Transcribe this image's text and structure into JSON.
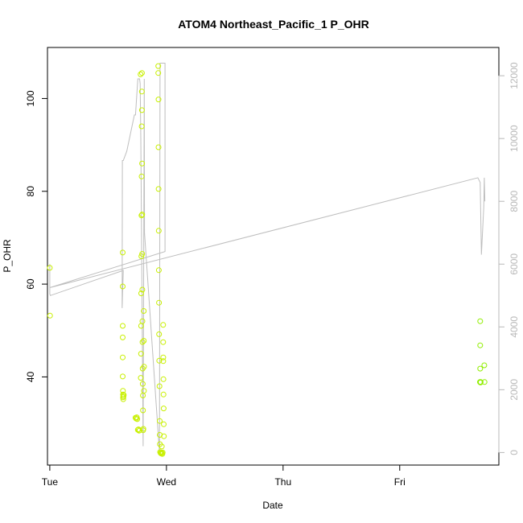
{
  "chart_data": {
    "type": "scatter",
    "title": "ATOM4 Northeast_Pacific_1 P_OHR",
    "xlabel": "Date",
    "ylabel": "P_OHR",
    "x_range": [
      -0.02,
      3.85
    ],
    "y_range": [
      21,
      111
    ],
    "y2_range": [
      -400,
      12900
    ],
    "x_ticks": [
      {
        "value": 0,
        "label": "Tue"
      },
      {
        "value": 1,
        "label": "Wed"
      },
      {
        "value": 2,
        "label": "Thu"
      },
      {
        "value": 3,
        "label": "Fri"
      }
    ],
    "y_ticks": [
      40,
      60,
      80,
      100
    ],
    "y2_ticks": [
      0,
      2000,
      4000,
      6000,
      8000,
      10000,
      12000
    ],
    "grid": false,
    "colors": {
      "points": "#c8f000",
      "points_late": "#90ee00",
      "line": "#bebebe",
      "right_axis": "#b8b8b8"
    },
    "points": [
      {
        "x": 0.0,
        "y": 63.5
      },
      {
        "x": 0.002,
        "y": 53.2
      },
      {
        "x": 0.625,
        "y": 66.8
      },
      {
        "x": 0.625,
        "y": 59.5
      },
      {
        "x": 0.625,
        "y": 51.0
      },
      {
        "x": 0.625,
        "y": 48.5
      },
      {
        "x": 0.625,
        "y": 44.2
      },
      {
        "x": 0.625,
        "y": 40.1
      },
      {
        "x": 0.627,
        "y": 37.0
      },
      {
        "x": 0.628,
        "y": 36.2
      },
      {
        "x": 0.628,
        "y": 35.6
      },
      {
        "x": 0.63,
        "y": 35.2
      },
      {
        "x": 0.632,
        "y": 35.8
      },
      {
        "x": 0.634,
        "y": 36.1
      },
      {
        "x": 0.735,
        "y": 31.2
      },
      {
        "x": 0.74,
        "y": 31.0
      },
      {
        "x": 0.745,
        "y": 31.3
      },
      {
        "x": 0.75,
        "y": 30.9
      },
      {
        "x": 0.755,
        "y": 28.6
      },
      {
        "x": 0.76,
        "y": 28.7
      },
      {
        "x": 0.765,
        "y": 28.4
      },
      {
        "x": 0.77,
        "y": 28.5
      },
      {
        "x": 0.778,
        "y": 105.2
      },
      {
        "x": 0.78,
        "y": 39.8
      },
      {
        "x": 0.782,
        "y": 45.0
      },
      {
        "x": 0.783,
        "y": 51.0
      },
      {
        "x": 0.784,
        "y": 58.0
      },
      {
        "x": 0.785,
        "y": 66.0
      },
      {
        "x": 0.786,
        "y": 74.8
      },
      {
        "x": 0.787,
        "y": 83.2
      },
      {
        "x": 0.788,
        "y": 94.0
      },
      {
        "x": 0.789,
        "y": 101.5
      },
      {
        "x": 0.79,
        "y": 105.5
      },
      {
        "x": 0.79,
        "y": 97.5
      },
      {
        "x": 0.791,
        "y": 86.0
      },
      {
        "x": 0.792,
        "y": 75.0
      },
      {
        "x": 0.792,
        "y": 66.5
      },
      {
        "x": 0.793,
        "y": 58.8
      },
      {
        "x": 0.794,
        "y": 52.0
      },
      {
        "x": 0.795,
        "y": 47.5
      },
      {
        "x": 0.796,
        "y": 41.8
      },
      {
        "x": 0.797,
        "y": 38.5
      },
      {
        "x": 0.798,
        "y": 36.0
      },
      {
        "x": 0.799,
        "y": 32.8
      },
      {
        "x": 0.8,
        "y": 28.5
      },
      {
        "x": 0.802,
        "y": 28.8
      },
      {
        "x": 0.806,
        "y": 54.2
      },
      {
        "x": 0.806,
        "y": 47.8
      },
      {
        "x": 0.807,
        "y": 37.0
      },
      {
        "x": 0.808,
        "y": 42.2
      },
      {
        "x": 0.93,
        "y": 107.0
      },
      {
        "x": 0.93,
        "y": 105.5
      },
      {
        "x": 0.932,
        "y": 99.8
      },
      {
        "x": 0.932,
        "y": 89.5
      },
      {
        "x": 0.933,
        "y": 80.5
      },
      {
        "x": 0.934,
        "y": 71.5
      },
      {
        "x": 0.935,
        "y": 63.0
      },
      {
        "x": 0.936,
        "y": 56.0
      },
      {
        "x": 0.937,
        "y": 49.2
      },
      {
        "x": 0.938,
        "y": 43.5
      },
      {
        "x": 0.94,
        "y": 38.0
      },
      {
        "x": 0.942,
        "y": 30.5
      },
      {
        "x": 0.943,
        "y": 27.5
      },
      {
        "x": 0.944,
        "y": 25.5
      },
      {
        "x": 0.946,
        "y": 23.8
      },
      {
        "x": 0.95,
        "y": 23.6
      },
      {
        "x": 0.955,
        "y": 23.5
      },
      {
        "x": 0.96,
        "y": 23.6
      },
      {
        "x": 0.965,
        "y": 23.4
      },
      {
        "x": 0.968,
        "y": 23.7
      },
      {
        "x": 0.972,
        "y": 51.2
      },
      {
        "x": 0.972,
        "y": 47.5
      },
      {
        "x": 0.973,
        "y": 44.2
      },
      {
        "x": 0.973,
        "y": 43.4
      },
      {
        "x": 0.974,
        "y": 39.5
      },
      {
        "x": 0.975,
        "y": 36.2
      },
      {
        "x": 0.976,
        "y": 33.2
      },
      {
        "x": 0.977,
        "y": 29.8
      },
      {
        "x": 0.978,
        "y": 27.2
      },
      {
        "x": 0.96,
        "y": 25.0
      },
      {
        "x": 3.69,
        "y": 52.0
      },
      {
        "x": 3.69,
        "y": 46.8
      },
      {
        "x": 3.69,
        "y": 41.8
      },
      {
        "x": 3.688,
        "y": 38.9
      },
      {
        "x": 3.692,
        "y": 38.8
      },
      {
        "x": 3.694,
        "y": 38.9
      },
      {
        "x": 3.725,
        "y": 42.5
      },
      {
        "x": 3.727,
        "y": 38.9
      }
    ],
    "line_y2": [
      {
        "x": 0.0,
        "y2": 6000
      },
      {
        "x": 0.0,
        "y2": 5050
      },
      {
        "x": 0.005,
        "y2": 5000
      },
      {
        "x": 0.63,
        "y2": 5800
      },
      {
        "x": 0.62,
        "y2": 4600
      },
      {
        "x": 0.622,
        "y2": 9300
      },
      {
        "x": 0.63,
        "y2": 9300
      },
      {
        "x": 0.66,
        "y2": 9600
      },
      {
        "x": 0.725,
        "y2": 10750
      },
      {
        "x": 0.735,
        "y2": 10750
      },
      {
        "x": 0.755,
        "y2": 11900
      },
      {
        "x": 0.77,
        "y2": 11900
      },
      {
        "x": 0.775,
        "y2": 11750
      },
      {
        "x": 0.78,
        "y2": 10000
      },
      {
        "x": 0.8,
        "y2": 200
      },
      {
        "x": 0.81,
        "y2": 11900
      },
      {
        "x": 0.812,
        "y2": 7000
      },
      {
        "x": 0.94,
        "y2": 0
      },
      {
        "x": 0.945,
        "y2": 12400
      },
      {
        "x": 0.988,
        "y2": 12400
      },
      {
        "x": 0.988,
        "y2": 6400
      },
      {
        "x": 0.0,
        "y2": 5250
      },
      {
        "x": 3.67,
        "y2": 8750
      },
      {
        "x": 3.69,
        "y2": 8600
      },
      {
        "x": 3.7,
        "y2": 6300
      },
      {
        "x": 3.72,
        "y2": 7800
      },
      {
        "x": 3.725,
        "y2": 8750
      },
      {
        "x": 3.73,
        "y2": 8000
      }
    ]
  }
}
